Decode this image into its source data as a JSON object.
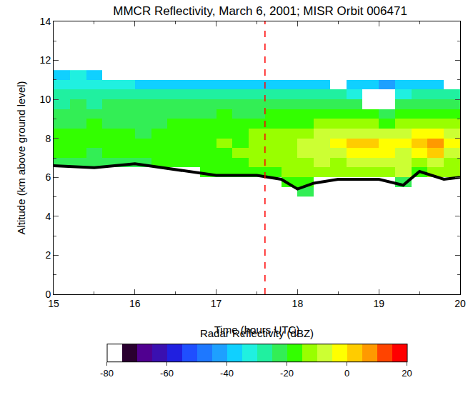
{
  "chart_data": {
    "type": "heatmap",
    "title": "MMCR Reflectivity, March 6, 2001; MISR Orbit 006471",
    "x_label": "Time (hours UTC)",
    "y_label": "Altitude (km above ground level)",
    "xlim": [
      15,
      20
    ],
    "xticks": [
      15,
      16,
      17,
      18,
      19,
      20
    ],
    "ylim": [
      0,
      14
    ],
    "yticks": [
      0,
      2,
      4,
      6,
      8,
      10,
      12,
      14
    ],
    "x": [
      15.1,
      15.3,
      15.5,
      15.7,
      15.9,
      16.1,
      16.3,
      16.5,
      16.7,
      16.9,
      17.1,
      17.3,
      17.5,
      17.7,
      17.9,
      18.1,
      18.3,
      18.5,
      18.7,
      18.9,
      19.1,
      19.3,
      19.5,
      19.7,
      19.9
    ],
    "y": [
      5.25,
      5.75,
      6.25,
      6.75,
      7.25,
      7.75,
      8.25,
      8.75,
      9.25,
      9.75,
      10.25,
      10.75,
      11.25
    ],
    "cells": [
      [
        null,
        null,
        null,
        null,
        null,
        null,
        null,
        null,
        null,
        null,
        null,
        null,
        null,
        null,
        null,
        -23,
        null,
        null,
        null,
        null,
        null,
        null,
        null,
        null,
        null
      ],
      [
        null,
        null,
        null,
        null,
        null,
        null,
        null,
        null,
        null,
        null,
        null,
        null,
        null,
        null,
        -18,
        -18,
        null,
        null,
        null,
        null,
        null,
        -23,
        null,
        null,
        null
      ],
      [
        null,
        null,
        null,
        null,
        null,
        null,
        null,
        null,
        null,
        -18,
        -18,
        -18,
        -18,
        -18,
        -13,
        -13,
        -13,
        -13,
        -13,
        -13,
        -13,
        -8,
        -18,
        -13,
        -13
      ],
      [
        -23,
        -23,
        -23,
        -23,
        -23,
        -23,
        -18,
        -18,
        -18,
        -18,
        -18,
        -18,
        -13,
        -13,
        -13,
        -13,
        -8,
        -13,
        -8,
        -8,
        -8,
        -8,
        -13,
        -8,
        -13
      ],
      [
        -18,
        -18,
        -23,
        -18,
        -18,
        -18,
        -18,
        -18,
        -18,
        -18,
        -18,
        -13,
        -13,
        -13,
        -13,
        -8,
        -8,
        -8,
        -3,
        -3,
        -3,
        -8,
        -3,
        2,
        -8
      ],
      [
        -18,
        -18,
        -18,
        -18,
        -18,
        -18,
        -18,
        -18,
        -18,
        -18,
        -13,
        -18,
        -13,
        -13,
        -13,
        -8,
        -8,
        -3,
        2,
        2,
        -3,
        -3,
        2,
        7,
        -3
      ],
      [
        -18,
        -18,
        -18,
        -18,
        -18,
        -23,
        -18,
        -18,
        -18,
        -18,
        -18,
        -18,
        -13,
        -13,
        -13,
        -13,
        -8,
        -8,
        -8,
        -8,
        -8,
        -8,
        -3,
        -3,
        -8
      ],
      [
        -23,
        -23,
        -18,
        -23,
        -23,
        -23,
        -23,
        -18,
        -18,
        -18,
        -18,
        -18,
        -18,
        -18,
        -18,
        -18,
        -13,
        -13,
        -13,
        -13,
        -18,
        -13,
        -13,
        -13,
        -13
      ],
      [
        -23,
        -23,
        -23,
        -23,
        -23,
        -23,
        -23,
        -23,
        -23,
        -23,
        -18,
        -23,
        -23,
        -18,
        -18,
        -18,
        -18,
        -18,
        -18,
        -18,
        -23,
        -18,
        -18,
        -18,
        -18
      ],
      [
        -28,
        -23,
        -28,
        -23,
        -23,
        -23,
        -23,
        -23,
        -23,
        -23,
        -23,
        -23,
        -23,
        -23,
        -23,
        -23,
        -23,
        -23,
        -23,
        null,
        null,
        -23,
        -23,
        -23,
        -23
      ],
      [
        -28,
        -28,
        -28,
        -28,
        -28,
        -28,
        -28,
        -28,
        -28,
        -28,
        -28,
        -28,
        -28,
        -28,
        -28,
        -28,
        -28,
        -28,
        -33,
        null,
        null,
        -33,
        -28,
        -28,
        -28
      ],
      [
        -33,
        -33,
        -33,
        -33,
        -33,
        -38,
        -38,
        -38,
        -38,
        -38,
        -38,
        -38,
        -38,
        -38,
        -38,
        -38,
        -38,
        null,
        -38,
        -38,
        -43,
        -38,
        -38,
        -38,
        null
      ],
      [
        -38,
        -33,
        -38,
        null,
        null,
        null,
        null,
        null,
        null,
        null,
        null,
        null,
        null,
        null,
        null,
        null,
        null,
        null,
        null,
        null,
        null,
        null,
        null,
        null,
        null
      ]
    ],
    "colorbar": {
      "title": "Radar Reflectivity (dBZ)",
      "range": [
        -80,
        20
      ],
      "ticks": [
        -80,
        -60,
        -40,
        -20,
        0,
        20
      ]
    },
    "line": {
      "x": [
        15,
        15.5,
        16,
        16.5,
        17,
        17.5,
        17.8,
        18,
        18.2,
        18.5,
        19,
        19.3,
        19.5,
        19.8,
        20
      ],
      "values": [
        6.6,
        6.5,
        6.7,
        6.4,
        6.1,
        6.1,
        5.9,
        5.4,
        5.7,
        5.9,
        5.9,
        5.6,
        6.3,
        5.9,
        6.0
      ],
      "color": "#000000"
    },
    "vlines": [
      {
        "x": 17.6,
        "color": "#ff0000",
        "line_style": "dash"
      }
    ]
  }
}
